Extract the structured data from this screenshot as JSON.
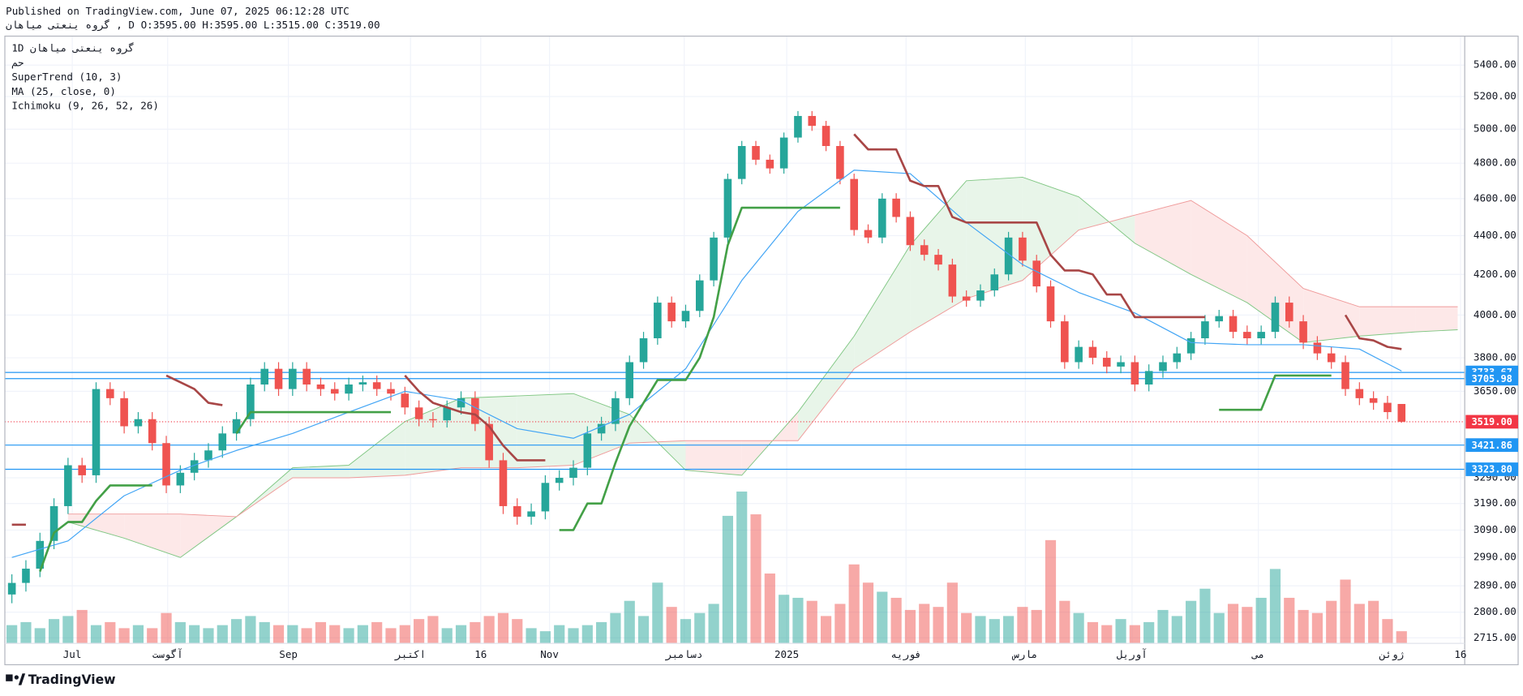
{
  "header": {
    "published": "Published on TradingView.com, June 07, 2025 06:12:28 UTC",
    "symbol_line": "ناهایم یتعنی هورگ , D O:3595.00 H:3595.00 L:3515.00 C:3519.00"
  },
  "legend": [
    "1D ناهایم یتعنی هورگ",
    "مح",
    "SuperTrend (10, 3)",
    "MA (25, close, 0)",
    "Ichimoku (9, 26, 52, 26)"
  ],
  "branding": "TradingView",
  "chart_data": {
    "type": "candlestick",
    "log_scale": true,
    "grid": true,
    "xlim": [
      -0.5,
      103.5
    ],
    "ylim": [
      2697,
      5591
    ],
    "yticks": [
      {
        "value": 5400,
        "label": "5400.00"
      },
      {
        "value": 5200,
        "label": "5200.00"
      },
      {
        "value": 5000,
        "label": "5000.00"
      },
      {
        "value": 4800,
        "label": "4800.00"
      },
      {
        "value": 4600,
        "label": "4600.00"
      },
      {
        "value": 4400,
        "label": "4400.00"
      },
      {
        "value": 4200,
        "label": "4200.00"
      },
      {
        "value": 4000,
        "label": "4000.00"
      },
      {
        "value": 3800,
        "label": "3800.00"
      },
      {
        "value": 3650,
        "label": "3650.00"
      },
      {
        "value": 3290,
        "label": "3290.00"
      },
      {
        "value": 3190,
        "label": "3190.00"
      },
      {
        "value": 3090,
        "label": "3090.00"
      },
      {
        "value": 2990,
        "label": "2990.00"
      },
      {
        "value": 2890,
        "label": "2890.00"
      },
      {
        "value": 2800,
        "label": "2800.00"
      },
      {
        "value": 2715,
        "label": "2715.00"
      }
    ],
    "xticks": [
      {
        "value": 4.3,
        "label": "Jul"
      },
      {
        "value": 11.1,
        "label": "آگوست"
      },
      {
        "value": 19.7,
        "label": "Sep"
      },
      {
        "value": 28.4,
        "label": "اکتبر"
      },
      {
        "value": 33.4,
        "label": "16"
      },
      {
        "value": 38.3,
        "label": "Nov"
      },
      {
        "value": 47.9,
        "label": "دسامبر"
      },
      {
        "value": 55.2,
        "label": "2025"
      },
      {
        "value": 63.7,
        "label": "فوریه"
      },
      {
        "value": 72.2,
        "label": "مارس"
      },
      {
        "value": 79.8,
        "label": "آوریل"
      },
      {
        "value": 88.8,
        "label": "می"
      },
      {
        "value": 98.3,
        "label": "ژوئن"
      },
      {
        "value": 103.2,
        "label": "16"
      }
    ],
    "candles": {
      "up_color": "#26a69a",
      "down_color": "#ef5350",
      "open": [
        2860,
        2900,
        2950,
        3050,
        3180,
        3340,
        3300,
        3660,
        3620,
        3500,
        3530,
        3430,
        3260,
        3310,
        3360,
        3400,
        3470,
        3530,
        3680,
        3750,
        3660,
        3750,
        3680,
        3660,
        3640,
        3680,
        3690,
        3660,
        3640,
        3580,
        3530,
        3525,
        3580,
        3620,
        3510,
        3360,
        3180,
        3140,
        3160,
        3270,
        3290,
        3330,
        3470,
        3510,
        3620,
        3780,
        3890,
        4060,
        3970,
        4020,
        4170,
        4390,
        4710,
        4900,
        4820,
        4770,
        4950,
        5080,
        5020,
        4900,
        4710,
        4430,
        4390,
        4600,
        4500,
        4350,
        4300,
        4250,
        4090,
        4070,
        4120,
        4200,
        4390,
        4270,
        4140,
        3970,
        3780,
        3850,
        3800,
        3760,
        3780,
        3680,
        3740,
        3780,
        3820,
        3890,
        3970,
        3995,
        3920,
        3890,
        3920,
        4060,
        3970,
        3870,
        3820,
        3780,
        3660,
        3620,
        3600,
        3595
      ],
      "high": [
        2930,
        2980,
        3080,
        3210,
        3370,
        3370,
        3690,
        3690,
        3650,
        3560,
        3560,
        3460,
        3340,
        3390,
        3430,
        3500,
        3560,
        3710,
        3780,
        3780,
        3780,
        3780,
        3710,
        3690,
        3710,
        3720,
        3720,
        3690,
        3670,
        3610,
        3560,
        3610,
        3650,
        3650,
        3540,
        3390,
        3210,
        3190,
        3300,
        3320,
        3360,
        3500,
        3540,
        3650,
        3810,
        3920,
        4090,
        4090,
        4050,
        4200,
        4420,
        4740,
        4930,
        4930,
        4850,
        4980,
        5110,
        5110,
        5050,
        4930,
        4740,
        4460,
        4630,
        4630,
        4530,
        4380,
        4330,
        4280,
        4120,
        4150,
        4230,
        4420,
        4420,
        4300,
        4170,
        4000,
        3880,
        3880,
        3830,
        3810,
        3810,
        3770,
        3810,
        3850,
        3920,
        4000,
        4025,
        4025,
        3950,
        3950,
        4090,
        4090,
        4000,
        3900,
        3850,
        3810,
        3690,
        3650,
        3630,
        3595
      ],
      "low": [
        2830,
        2870,
        2920,
        3020,
        3150,
        3270,
        3270,
        3590,
        3470,
        3470,
        3400,
        3230,
        3230,
        3280,
        3330,
        3370,
        3440,
        3500,
        3650,
        3630,
        3630,
        3650,
        3630,
        3610,
        3610,
        3650,
        3630,
        3610,
        3550,
        3500,
        3495,
        3495,
        3550,
        3480,
        3330,
        3150,
        3110,
        3110,
        3130,
        3240,
        3260,
        3300,
        3440,
        3480,
        3590,
        3750,
        3860,
        3940,
        3940,
        3990,
        4140,
        4360,
        4680,
        4790,
        4740,
        4740,
        4920,
        4990,
        4870,
        4680,
        4400,
        4360,
        4360,
        4470,
        4320,
        4270,
        4220,
        4060,
        4040,
        4040,
        4090,
        4170,
        4240,
        4110,
        3940,
        3750,
        3750,
        3770,
        3730,
        3730,
        3650,
        3650,
        3710,
        3750,
        3790,
        3860,
        3940,
        3890,
        3860,
        3860,
        3890,
        3940,
        3840,
        3790,
        3750,
        3630,
        3590,
        3570,
        3530,
        3515
      ],
      "close": [
        2900,
        2950,
        3050,
        3180,
        3340,
        3300,
        3660,
        3620,
        3500,
        3530,
        3430,
        3260,
        3310,
        3360,
        3400,
        3470,
        3530,
        3680,
        3750,
        3660,
        3750,
        3680,
        3660,
        3640,
        3680,
        3690,
        3660,
        3640,
        3580,
        3530,
        3525,
        3580,
        3620,
        3510,
        3360,
        3180,
        3140,
        3160,
        3270,
        3290,
        3330,
        3470,
        3510,
        3620,
        3780,
        3890,
        4060,
        3970,
        4020,
        4170,
        4390,
        4710,
        4900,
        4820,
        4770,
        4950,
        5080,
        5020,
        4900,
        4710,
        4430,
        4390,
        4600,
        4500,
        4350,
        4300,
        4250,
        4090,
        4070,
        4120,
        4200,
        4390,
        4270,
        4140,
        3970,
        3780,
        3850,
        3800,
        3760,
        3780,
        3680,
        3740,
        3780,
        3820,
        3890,
        3970,
        3995,
        3920,
        3890,
        3920,
        4060,
        3970,
        3870,
        3820,
        3780,
        3660,
        3620,
        3600,
        3560,
        3519
      ],
      "volume": [
        12,
        14,
        10,
        16,
        18,
        22,
        12,
        14,
        10,
        12,
        10,
        20,
        14,
        12,
        10,
        12,
        16,
        18,
        14,
        12,
        12,
        10,
        14,
        12,
        10,
        12,
        14,
        10,
        12,
        16,
        18,
        10,
        12,
        14,
        18,
        20,
        16,
        10,
        8,
        12,
        10,
        12,
        14,
        20,
        28,
        18,
        40,
        24,
        16,
        20,
        26,
        84,
        100,
        85,
        46,
        32,
        30,
        28,
        18,
        26,
        52,
        40,
        34,
        30,
        22,
        26,
        24,
        40,
        20,
        18,
        16,
        18,
        24,
        22,
        68,
        28,
        20,
        14,
        12,
        16,
        12,
        14,
        22,
        18,
        28,
        36,
        20,
        26,
        24,
        30,
        49,
        30,
        22,
        20,
        28,
        42,
        26,
        28,
        16,
        8
      ]
    },
    "volume_ylim": [
      0,
      400
    ],
    "supertrend": {
      "up": {
        "color": "#43a047",
        "values": [
          null,
          null,
          2940,
          3080,
          3120,
          3120,
          3200,
          3260,
          3260,
          3260,
          3260,
          null,
          null,
          null,
          null,
          null,
          3470,
          3560,
          3560,
          3560,
          3560,
          3560,
          3560,
          3560,
          3560,
          3560,
          3560,
          3560,
          null,
          null,
          null,
          null,
          null,
          null,
          null,
          null,
          null,
          null,
          null,
          3090,
          3090,
          3190,
          3190,
          3350,
          3500,
          3600,
          3700,
          3700,
          3700,
          3800,
          3990,
          4350,
          4550,
          4550,
          4550,
          4550,
          4550,
          4550,
          4550,
          4550,
          null,
          null,
          null,
          null,
          null,
          null,
          null,
          null,
          null,
          null,
          null,
          null,
          null,
          null,
          null,
          null,
          null,
          null,
          null,
          null,
          null,
          null,
          null,
          null,
          null,
          null,
          3570,
          3570,
          3570,
          3570,
          3720,
          3720,
          3720,
          3720,
          3720,
          null,
          null,
          null,
          null,
          null
        ]
      },
      "down": {
        "color": "#a84646",
        "values": [
          3110,
          3110,
          null,
          null,
          null,
          null,
          null,
          null,
          null,
          null,
          null,
          3720,
          3690,
          3660,
          3600,
          3590,
          null,
          null,
          null,
          null,
          null,
          null,
          null,
          null,
          null,
          null,
          null,
          null,
          3720,
          3650,
          3600,
          3580,
          3560,
          3550,
          3500,
          3420,
          3360,
          3360,
          3360,
          null,
          null,
          null,
          null,
          null,
          null,
          null,
          null,
          null,
          null,
          null,
          null,
          null,
          null,
          null,
          null,
          null,
          null,
          null,
          null,
          null,
          4970,
          4880,
          4880,
          4880,
          4700,
          4670,
          4670,
          4500,
          4470,
          4470,
          4470,
          4470,
          4470,
          4470,
          4300,
          4220,
          4220,
          4200,
          4100,
          4100,
          3990,
          3990,
          3990,
          3990,
          3990,
          3990,
          null,
          null,
          null,
          null,
          null,
          null,
          null,
          null,
          null,
          4000,
          3890,
          3880,
          3850,
          3840
        ]
      }
    },
    "ma": {
      "color": "#42a5f5",
      "x": [
        0,
        4,
        8,
        12,
        16,
        20,
        24,
        28,
        32,
        36,
        40,
        44,
        48,
        52,
        56,
        60,
        64,
        68,
        72,
        76,
        80,
        84,
        88,
        92,
        96,
        99
      ],
      "values": [
        2990,
        3050,
        3220,
        3320,
        3400,
        3470,
        3560,
        3650,
        3610,
        3490,
        3450,
        3550,
        3750,
        4170,
        4530,
        4760,
        4740,
        4470,
        4250,
        4110,
        4010,
        3870,
        3860,
        3860,
        3840,
        3740
      ]
    },
    "ichimoku": {
      "span_a_color": "#81c784",
      "span_b_color": "#ef9a9a",
      "up_fill": "#e8f5e9",
      "down_fill": "#fde8e8",
      "x": [
        4,
        8,
        12,
        16,
        20,
        24,
        28,
        32,
        36,
        40,
        44,
        48,
        52,
        56,
        60,
        64,
        68,
        72,
        76,
        80,
        84,
        88,
        92,
        96,
        100,
        103
      ],
      "span_a": [
        3120,
        3060,
        2990,
        3140,
        3330,
        3340,
        3520,
        3620,
        3630,
        3640,
        3550,
        3320,
        3300,
        3560,
        3900,
        4350,
        4700,
        4720,
        4610,
        4360,
        4200,
        4060,
        3870,
        3900,
        3920,
        3930
      ],
      "span_b": [
        3150,
        3150,
        3150,
        3140,
        3290,
        3290,
        3300,
        3330,
        3330,
        3340,
        3430,
        3440,
        3440,
        3440,
        3750,
        3920,
        4080,
        4170,
        4430,
        4510,
        4590,
        4400,
        4130,
        4040,
        4040,
        4040
      ]
    },
    "price_lines": [
      {
        "value": 3733.67,
        "color": "#2196f3"
      },
      {
        "value": 3705.98,
        "color": "#2196f3"
      },
      {
        "value": 3421.86,
        "color": "#2196f3"
      },
      {
        "value": 3323.8,
        "label": "3323.80",
        "color": "#2196f3"
      }
    ],
    "last_price": {
      "value": 3519,
      "label": "3519.00",
      "color": "#f23645"
    }
  }
}
